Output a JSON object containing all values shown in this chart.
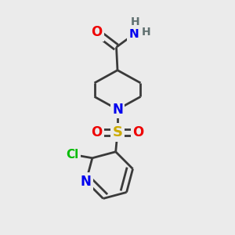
{
  "bg_color": "#ebebeb",
  "atom_colors": {
    "C": "#3a3a3a",
    "N": "#0000ee",
    "O": "#ee0000",
    "S": "#ccaa00",
    "Cl": "#00bb00",
    "H": "#607070"
  },
  "bond_color": "#3a3a3a",
  "bond_width": 2.0,
  "dbl_sep": 0.13,
  "font_size": 11,
  "fig_size": [
    3.0,
    3.0
  ],
  "dpi": 100,
  "xlim": [
    0,
    10
  ],
  "ylim": [
    0,
    10
  ]
}
